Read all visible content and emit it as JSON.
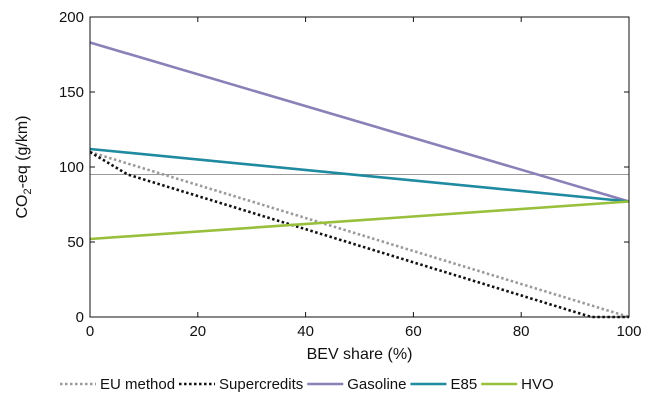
{
  "chart_data": {
    "type": "line",
    "xlabel": "BEV share (%)",
    "ylabel_main": "CO",
    "ylabel_sub": "2",
    "ylabel_rest": "-eq (g/km)",
    "xlim": [
      0,
      100
    ],
    "ylim": [
      0,
      200
    ],
    "xticks": [
      0,
      20,
      40,
      60,
      80,
      100
    ],
    "yticks": [
      0,
      50,
      100,
      150,
      200
    ],
    "grid": false,
    "legend_position": "bottom",
    "reference_line": {
      "y": 95,
      "color": "#9a9a9a"
    },
    "series": [
      {
        "name": "EU method",
        "color": "#9a9a9a",
        "dash": "dotted",
        "x": [
          0,
          100
        ],
        "y": [
          110,
          0
        ]
      },
      {
        "name": "Supercredits",
        "color": "#111111",
        "dash": "dotted",
        "x": [
          0,
          7,
          93,
          100
        ],
        "y": [
          110,
          95,
          0,
          0
        ]
      },
      {
        "name": "Gasoline",
        "color": "#8b80b8",
        "dash": "solid",
        "x": [
          0,
          100
        ],
        "y": [
          183,
          77
        ]
      },
      {
        "name": "E85",
        "color": "#1f8aa0",
        "dash": "solid",
        "x": [
          0,
          100
        ],
        "y": [
          112,
          77
        ]
      },
      {
        "name": "HVO",
        "color": "#98c03c",
        "dash": "solid",
        "x": [
          0,
          100
        ],
        "y": [
          52,
          77
        ]
      }
    ]
  }
}
